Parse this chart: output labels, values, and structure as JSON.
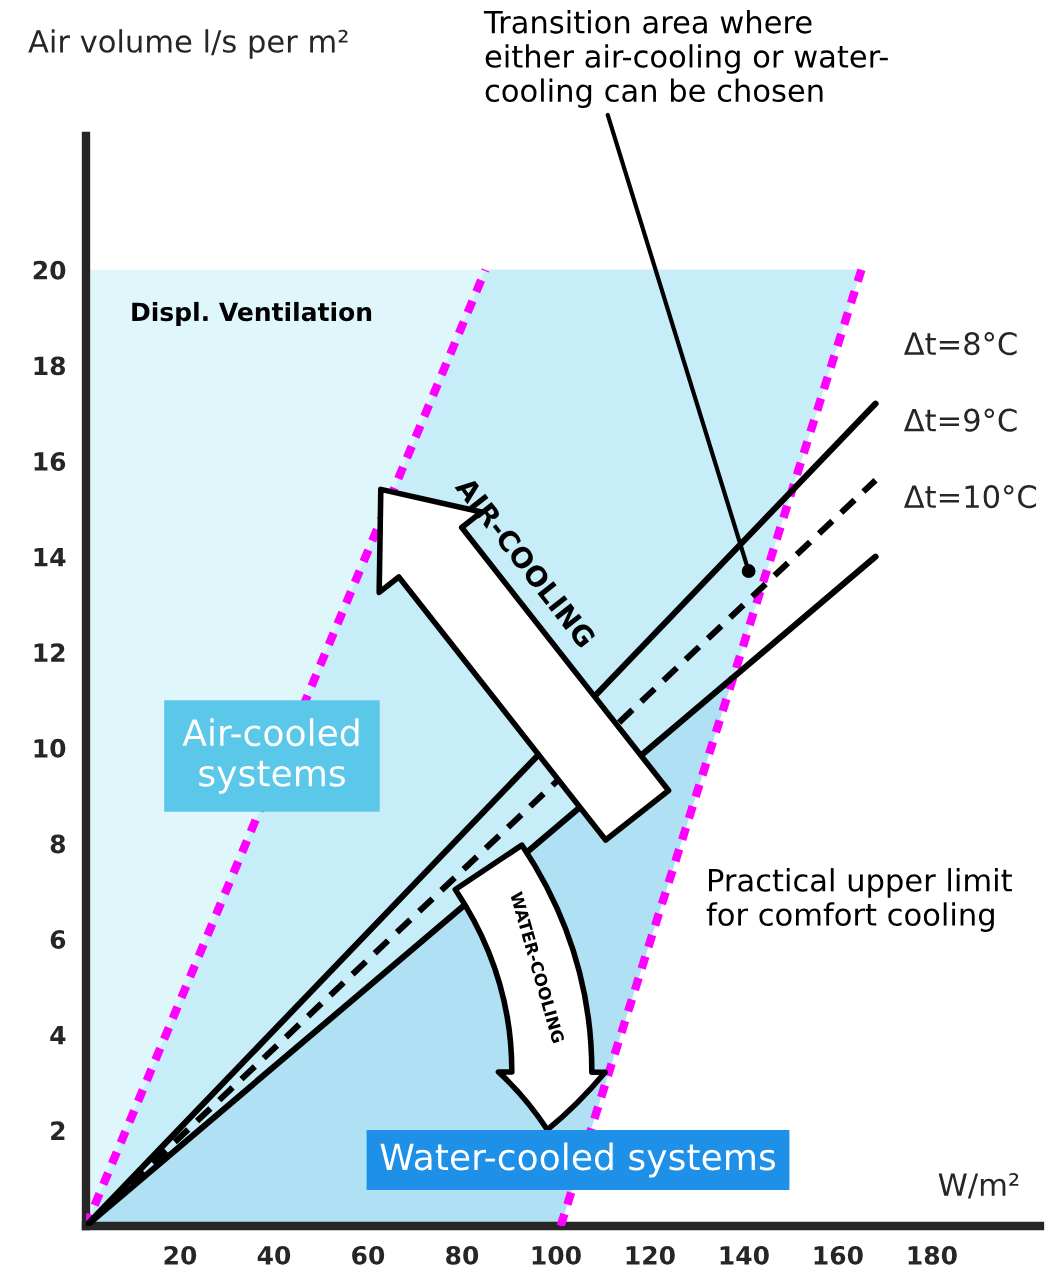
{
  "chart_data": {
    "type": "line",
    "ylabel": "Air volume l/s per m²",
    "xlabel": "W/m²",
    "xlim": [
      0,
      203
    ],
    "ylim": [
      0,
      22.8
    ],
    "xticks": [
      20,
      40,
      60,
      80,
      100,
      120,
      140,
      160,
      180
    ],
    "yticks": [
      2,
      4,
      6,
      8,
      10,
      12,
      14,
      16,
      18,
      20
    ],
    "grid": false,
    "legend": false,
    "series": [
      {
        "color": "#ff00ff",
        "line_style": "dotted",
        "x": [
          0,
          85
        ],
        "values": [
          0,
          20
        ]
      },
      {
        "color": "#ff00ff",
        "line_style": "dotted",
        "x": [
          101,
          165
        ],
        "values": [
          0,
          20
        ]
      },
      {
        "name": "Δt=8°C",
        "color": "#000000",
        "line_style": "solid",
        "x": [
          0,
          168
        ],
        "values": [
          0,
          17.2
        ]
      },
      {
        "name": "Δt=9°C",
        "color": "#000000",
        "line_style": "dashed",
        "x": [
          0,
          168
        ],
        "values": [
          0,
          15.6
        ]
      },
      {
        "name": "Δt=10°C",
        "color": "#000000",
        "line_style": "solid",
        "x": [
          0,
          168
        ],
        "values": [
          0,
          14
        ]
      }
    ],
    "annotations": [
      {
        "text": "Transition area where\neither air-cooling or water-\ncooling can be chosen",
        "x": 141,
        "y": 13.7
      },
      "Displ. Ventilation",
      "Air-cooled\nsystems",
      "Water-cooled systems",
      "AIR-COOLING",
      "WATER-COOLING",
      "Practical upper limit\nfor comfort cooling"
    ]
  }
}
